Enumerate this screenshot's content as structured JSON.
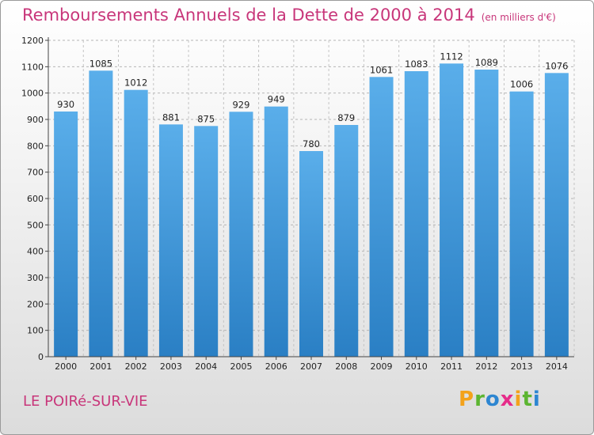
{
  "header": {
    "title": "Remboursements Annuels de la Dette de 2000 à 2014",
    "unit": "(en milliers d'€)"
  },
  "footer": {
    "town": "LE POIRé-SUR-VIE",
    "logo_letters": [
      "P",
      "r",
      "o",
      "x",
      "i",
      "t",
      "i"
    ]
  },
  "colors": {
    "title": "#c8367a",
    "bar_top": "#5aaeea",
    "bar_bottom": "#2a7fc4",
    "logo": [
      "#f3a21b",
      "#5cb531",
      "#2d86d1",
      "#e62c8a",
      "#f3a21b",
      "#5cb531",
      "#2d86d1"
    ]
  },
  "chart_data": {
    "type": "bar",
    "title": "Remboursements Annuels de la Dette de 2000 à 2014",
    "xlabel": "",
    "ylabel": "",
    "ylim": [
      0,
      1200
    ],
    "yticks": [
      0,
      100,
      200,
      300,
      400,
      500,
      600,
      700,
      800,
      900,
      1000,
      1100,
      1200
    ],
    "grid": "horizontal-dashed",
    "categories": [
      "2000",
      "2001",
      "2002",
      "2003",
      "2004",
      "2005",
      "2006",
      "2007",
      "2008",
      "2009",
      "2010",
      "2011",
      "2012",
      "2013",
      "2014"
    ],
    "values": [
      930,
      1085,
      1012,
      881,
      875,
      929,
      949,
      780,
      879,
      1061,
      1083,
      1112,
      1089,
      1006,
      1076
    ]
  }
}
